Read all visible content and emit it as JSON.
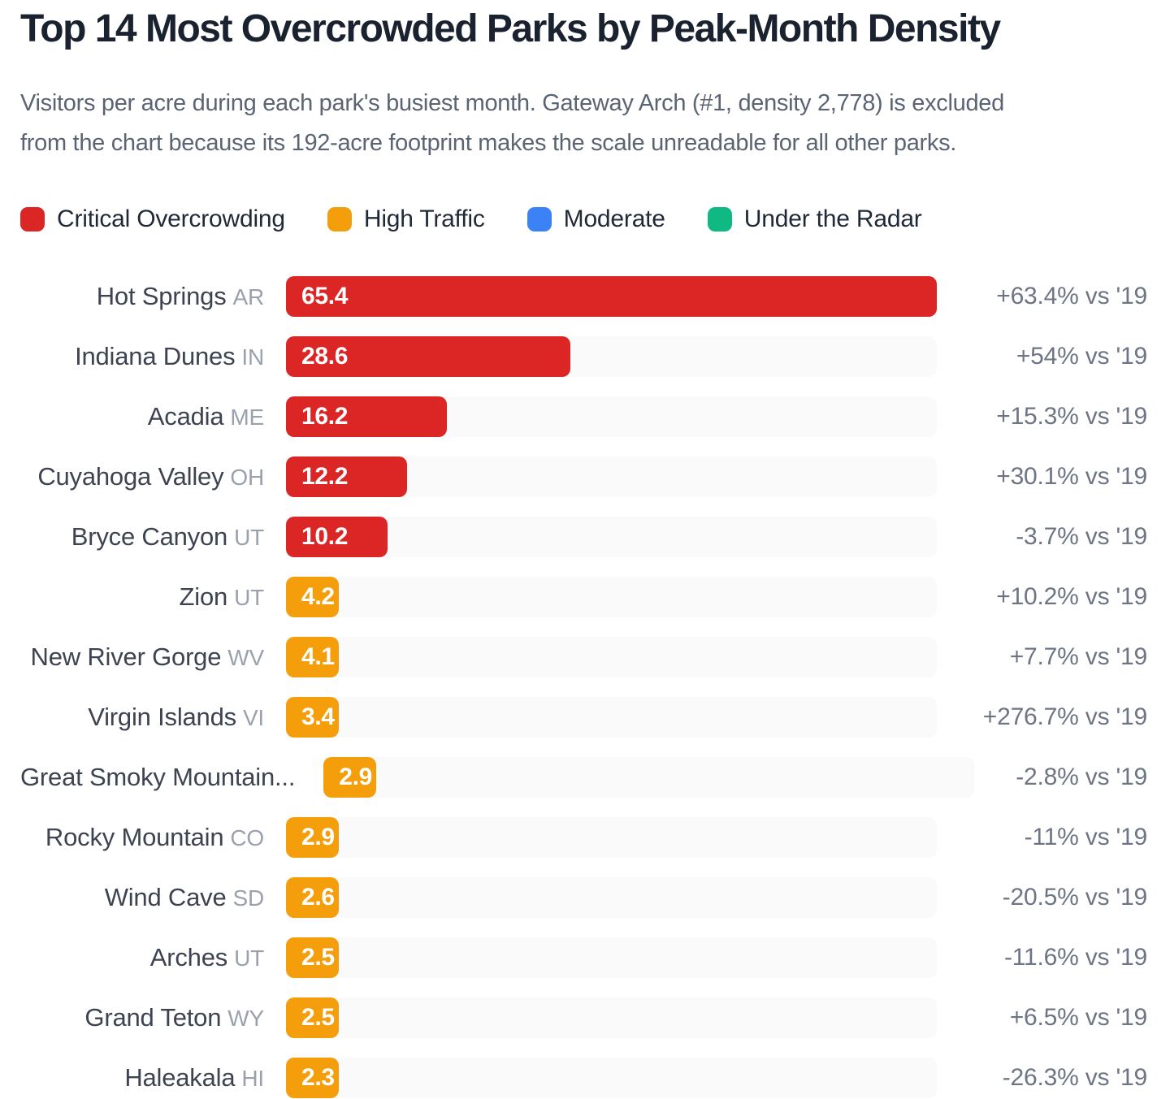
{
  "header": {
    "title": "Top 14 Most Overcrowded Parks by Peak-Month Density",
    "subtitle_lines": [
      "Visitors per acre during each park's busiest month. Gateway Arch (#1, density 2,778) is excluded",
      "from the chart because its 192-acre footprint makes the scale unreadable for all other parks."
    ]
  },
  "legend": {
    "items": [
      {
        "label": "Critical Overcrowding",
        "key": "critical",
        "color": "#dc2626"
      },
      {
        "label": "High Traffic",
        "key": "high",
        "color": "#f59e0b"
      },
      {
        "label": "Moderate",
        "key": "moderate",
        "color": "#3b82f6"
      },
      {
        "label": "Under the Radar",
        "key": "under",
        "color": "#10b981"
      }
    ],
    "position": "top"
  },
  "colors": {
    "critical": "#dc2626",
    "high": "#f59e0b",
    "moderate": "#3b82f6",
    "under": "#10b981",
    "track": "#fafafa"
  },
  "chart_data": {
    "type": "bar",
    "orientation": "horizontal",
    "title": "Top 14 Most Overcrowded Parks by Peak-Month Density",
    "subtitle": "Visitors per acre during each park's busiest month. Gateway Arch (#1, density 2,778) is excluded from the chart because its 192-acre footprint makes the scale unreadable for all other parks.",
    "xlabel": "",
    "ylabel": "",
    "x_min": 0,
    "x_max": 65.4,
    "grid": false,
    "legend_position": "top",
    "rows": [
      {
        "park": "Hot Springs",
        "state": "AR",
        "value": 65.4,
        "value_label": "65.4",
        "category": "critical",
        "change_label": "+63.4% vs '19"
      },
      {
        "park": "Indiana Dunes",
        "state": "IN",
        "value": 28.6,
        "value_label": "28.6",
        "category": "critical",
        "change_label": "+54% vs '19"
      },
      {
        "park": "Acadia",
        "state": "ME",
        "value": 16.2,
        "value_label": "16.2",
        "category": "critical",
        "change_label": "+15.3% vs '19"
      },
      {
        "park": "Cuyahoga Valley",
        "state": "OH",
        "value": 12.2,
        "value_label": "12.2",
        "category": "critical",
        "change_label": "+30.1% vs '19"
      },
      {
        "park": "Bryce Canyon",
        "state": "UT",
        "value": 10.2,
        "value_label": "10.2",
        "category": "critical",
        "change_label": "-3.7% vs '19"
      },
      {
        "park": "Zion",
        "state": "UT",
        "value": 4.2,
        "value_label": "4.2",
        "category": "high",
        "change_label": "+10.2% vs '19"
      },
      {
        "park": "New River Gorge",
        "state": "WV",
        "value": 4.1,
        "value_label": "4.1",
        "category": "high",
        "change_label": "+7.7% vs '19"
      },
      {
        "park": "Virgin Islands",
        "state": "VI",
        "value": 3.4,
        "value_label": "3.4",
        "category": "high",
        "change_label": "+276.7% vs '19"
      },
      {
        "park": "Great Smoky Mountain...",
        "state": "",
        "value": 2.9,
        "value_label": "2.9",
        "category": "high",
        "change_label": "-2.8% vs '19"
      },
      {
        "park": "Rocky Mountain",
        "state": "CO",
        "value": 2.9,
        "value_label": "2.9",
        "category": "high",
        "change_label": "-11% vs '19"
      },
      {
        "park": "Wind Cave",
        "state": "SD",
        "value": 2.6,
        "value_label": "2.6",
        "category": "high",
        "change_label": "-20.5% vs '19"
      },
      {
        "park": "Arches",
        "state": "UT",
        "value": 2.5,
        "value_label": "2.5",
        "category": "high",
        "change_label": "-11.6% vs '19"
      },
      {
        "park": "Grand Teton",
        "state": "WY",
        "value": 2.5,
        "value_label": "2.5",
        "category": "high",
        "change_label": "+6.5% vs '19"
      },
      {
        "park": "Haleakala",
        "state": "HI",
        "value": 2.3,
        "value_label": "2.3",
        "category": "high",
        "change_label": "-26.3% vs '19"
      }
    ]
  }
}
